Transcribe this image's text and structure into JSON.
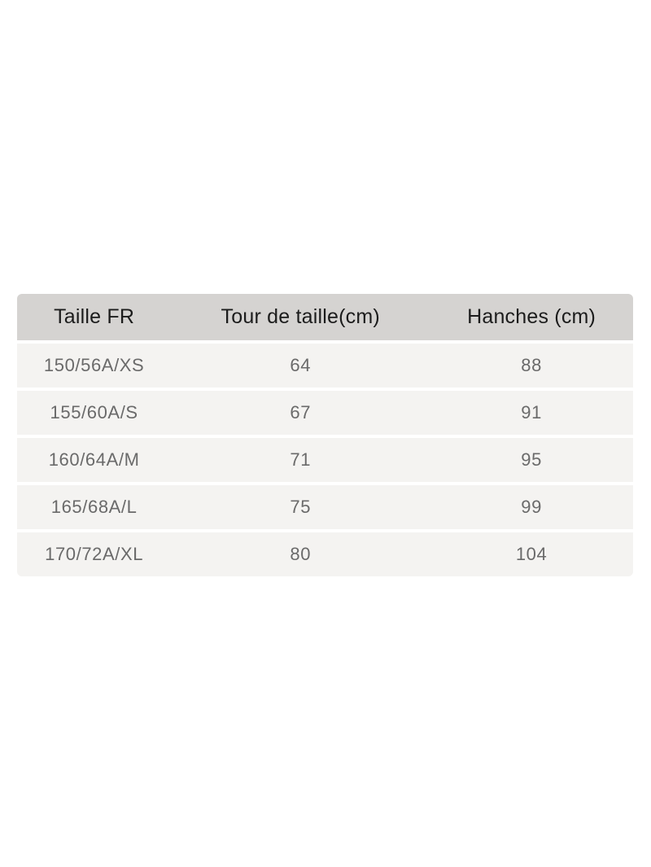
{
  "size_chart": {
    "columns": [
      {
        "label": "Taille FR"
      },
      {
        "label": "Tour de taille(cm)"
      },
      {
        "label": "Hanches (cm)"
      }
    ],
    "rows": [
      {
        "taille_fr": "150/56A/XS",
        "tour_de_taille_cm": "64",
        "hanches_cm": "88"
      },
      {
        "taille_fr": "155/60A/S",
        "tour_de_taille_cm": "67",
        "hanches_cm": "91"
      },
      {
        "taille_fr": "160/64A/M",
        "tour_de_taille_cm": "71",
        "hanches_cm": "95"
      },
      {
        "taille_fr": "165/68A/L",
        "tour_de_taille_cm": "75",
        "hanches_cm": "99"
      },
      {
        "taille_fr": "170/72A/XL",
        "tour_de_taille_cm": "80",
        "hanches_cm": "104"
      }
    ],
    "colors": {
      "header_bg": "#d5d3d1",
      "row_bg": "#f4f3f1",
      "divider": "#ffffff",
      "header_text": "#1c1c1c",
      "row_text": "#6a6a6a",
      "page_background": "#ffffff"
    }
  }
}
